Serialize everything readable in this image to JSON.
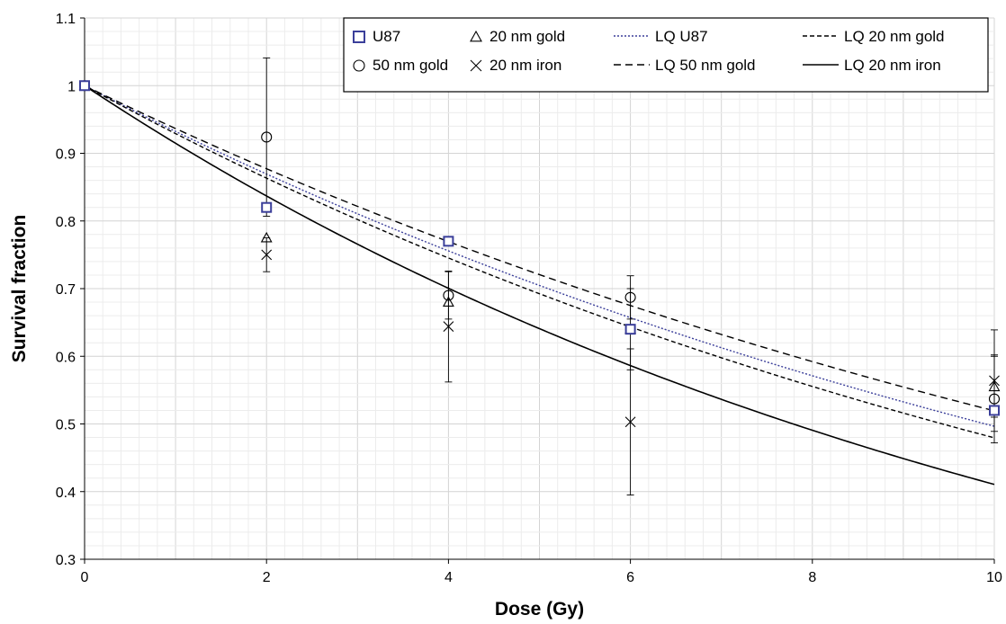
{
  "chart_data": {
    "type": "scatter",
    "xlabel": "Dose (Gy)",
    "ylabel": "Survival fraction",
    "xlim": [
      0,
      10
    ],
    "ylim": [
      0.3,
      1.1
    ],
    "x_ticks": [
      0,
      2,
      4,
      6,
      8,
      10
    ],
    "y_ticks": [
      0.3,
      0.4,
      0.5,
      0.6,
      0.7,
      0.8,
      0.9,
      1.0,
      1.1
    ],
    "x_tick_labels": [
      "0",
      "2",
      "4",
      "6",
      "8",
      "10"
    ],
    "y_tick_labels": [
      "0.3",
      "0.4",
      "0.5",
      "0.6",
      "0.7",
      "0.8",
      "0.9",
      "1",
      "1.1"
    ],
    "grid": true,
    "legend_position": "top-right",
    "series": [
      {
        "name": "U87",
        "marker": "square",
        "color": "#3b3f9a",
        "points": [
          {
            "x": 0,
            "y": 1.0
          },
          {
            "x": 2,
            "y": 0.82,
            "err": 0.0
          },
          {
            "x": 4,
            "y": 0.77,
            "err": 0.0
          },
          {
            "x": 6,
            "y": 0.64,
            "err": 0.0
          },
          {
            "x": 10,
            "y": 0.52,
            "err": 0.0
          }
        ]
      },
      {
        "name": "20 nm gold",
        "marker": "triangle",
        "color": "#000000",
        "points": [
          {
            "x": 0,
            "y": 1.0
          },
          {
            "x": 2,
            "y": 0.775,
            "err": 0.0
          },
          {
            "x": 4,
            "y": 0.68,
            "err": 0.0
          },
          {
            "x": 6,
            "y": 0.64,
            "err": 0.06
          },
          {
            "x": 10,
            "y": 0.555,
            "err": 0.045
          }
        ]
      },
      {
        "name": "50 nm gold",
        "marker": "circle",
        "color": "#000000",
        "points": [
          {
            "x": 0,
            "y": 1.0
          },
          {
            "x": 2,
            "y": 0.924,
            "err": 0.117
          },
          {
            "x": 4,
            "y": 0.69,
            "err": 0.035
          },
          {
            "x": 6,
            "y": 0.687,
            "err": 0.032
          },
          {
            "x": 10,
            "y": 0.537,
            "err": 0.065
          }
        ]
      },
      {
        "name": "20 nm iron",
        "marker": "x",
        "color": "#000000",
        "points": [
          {
            "x": 0,
            "y": 1.0
          },
          {
            "x": 2,
            "y": 0.75,
            "err": 0.025
          },
          {
            "x": 4,
            "y": 0.644,
            "err": 0.082
          },
          {
            "x": 6,
            "y": 0.503,
            "err": 0.108
          },
          {
            "x": 10,
            "y": 0.564,
            "err": 0.075
          }
        ]
      }
    ],
    "fits": [
      {
        "name": "LQ U87",
        "style": "dotted",
        "color": "#3b3f9a",
        "alpha": 0.07,
        "beta": 0.0
      },
      {
        "name": "LQ 20 nm gold",
        "style": "dashed-dense",
        "color": "#000000",
        "alpha": 0.0735,
        "beta": 0.0
      },
      {
        "name": "LQ 50 nm gold",
        "style": "dashed",
        "color": "#000000",
        "alpha": 0.0655,
        "beta": 0.0
      },
      {
        "name": "LQ 20 nm iron",
        "style": "solid",
        "color": "#000000",
        "alpha": 0.089,
        "beta": 0.0
      }
    ]
  },
  "legend": {
    "entries": [
      {
        "label": "U87",
        "kind": "marker",
        "marker": "square",
        "color": "#3b3f9a"
      },
      {
        "label": "20 nm gold",
        "kind": "marker",
        "marker": "triangle",
        "color": "#000000"
      },
      {
        "label": "LQ U87",
        "kind": "line",
        "style": "dotted",
        "color": "#3b3f9a"
      },
      {
        "label": "LQ 20 nm gold",
        "kind": "line",
        "style": "dashed-dense",
        "color": "#000000"
      },
      {
        "label": "50 nm gold",
        "kind": "marker",
        "marker": "circle",
        "color": "#000000"
      },
      {
        "label": "20 nm iron",
        "kind": "marker",
        "marker": "x",
        "color": "#000000"
      },
      {
        "label": "LQ 50 nm gold",
        "kind": "line",
        "style": "dashed",
        "color": "#000000"
      },
      {
        "label": "LQ 20 nm iron",
        "kind": "line",
        "style": "solid",
        "color": "#000000"
      }
    ]
  }
}
